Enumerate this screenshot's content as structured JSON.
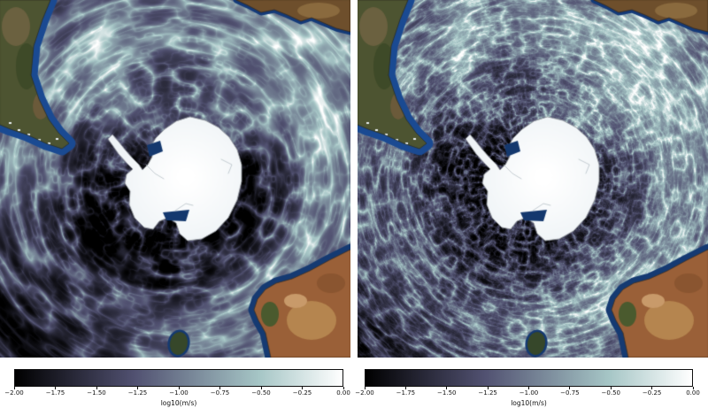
{
  "figure": {
    "kind": "two-panel map of Southern Ocean surface current speed around Antarctica",
    "panels": [
      {
        "name": "left",
        "visible_landmasses": [
          "South America",
          "Africa",
          "Australia",
          "Tasmania",
          "Antarctica"
        ],
        "texture": "broad smooth current filaments"
      },
      {
        "name": "right",
        "visible_landmasses": [
          "South America",
          "Africa",
          "Australia",
          "Tasmania",
          "Antarctica"
        ],
        "texture": "fine turbulent eddies"
      }
    ],
    "colorbars": [
      {
        "label": "log10(m/s)",
        "tick_labels": [
          "−2.00",
          "−1.75",
          "−1.50",
          "−1.25",
          "−1.00",
          "−0.75",
          "−0.50",
          "−0.25",
          "0.00"
        ]
      },
      {
        "label": "log10(m/s)",
        "tick_labels": [
          "−2.00",
          "−1.75",
          "−1.50",
          "−1.25",
          "−1.00",
          "−0.75",
          "−0.50",
          "−0.25",
          "0.00"
        ]
      }
    ],
    "colors": {
      "background": "#ffffff",
      "colormap_stops": [
        {
          "t": 0,
          "hex": "#000000"
        },
        {
          "t": 0.365,
          "hex": "#515171"
        },
        {
          "t": 0.746,
          "hex": "#a6c6c6"
        },
        {
          "t": 1,
          "hex": "#ffffff"
        }
      ],
      "shelf_blue": "#1a4a92",
      "shelf_navy": "#153a72",
      "ice_white": "#f6fafc",
      "ice_shelf_front_blue": "#14386e",
      "land_green_south_america": "#4d5431",
      "land_brown_africa": "#6e4f2c",
      "land_red_australia": "#9a6038",
      "land_green_tasmania": "#36472a"
    }
  },
  "chart_data": {
    "type": "heatmap",
    "title": "",
    "panel_count": 2,
    "value_label": "log10(m/s)",
    "value_range": [
      -2.0,
      0.0
    ],
    "tick_values": [
      -2.0,
      -1.75,
      -1.5,
      -1.25,
      -1.0,
      -0.75,
      -0.5,
      -0.25,
      0.0
    ],
    "colorbar_position": "below each panel",
    "description": "Ocean surface current speed, log10 of m/s, South Polar view; dark slow ring near Antarctica, bright Antarctic Circumpolar Current filaments; right panel shows finer eddy structure"
  }
}
